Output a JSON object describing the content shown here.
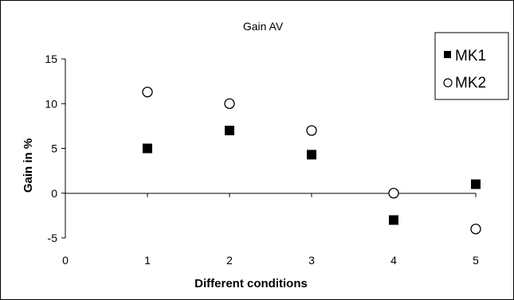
{
  "chart_data": {
    "type": "scatter",
    "title": "Gain AV",
    "xlabel": "Different conditions",
    "ylabel": "Gain in %",
    "xlim": [
      0,
      5
    ],
    "ylim": [
      -5,
      15
    ],
    "x_ticks": [
      "0",
      "1",
      "2",
      "3",
      "4",
      "5"
    ],
    "y_ticks": [
      "-5",
      "0",
      "5",
      "10",
      "15"
    ],
    "grid": false,
    "legend_position": "top-right",
    "series": [
      {
        "name": "MK1",
        "marker": "filled-square",
        "color": "#000000",
        "x": [
          1,
          2,
          3,
          4,
          5
        ],
        "y": [
          5,
          7,
          4.3,
          -3,
          1
        ]
      },
      {
        "name": "MK2",
        "marker": "open-circle",
        "color": "#000000",
        "x": [
          1,
          2,
          3,
          4,
          5
        ],
        "y": [
          11.3,
          10,
          7,
          0,
          -4
        ]
      }
    ]
  }
}
